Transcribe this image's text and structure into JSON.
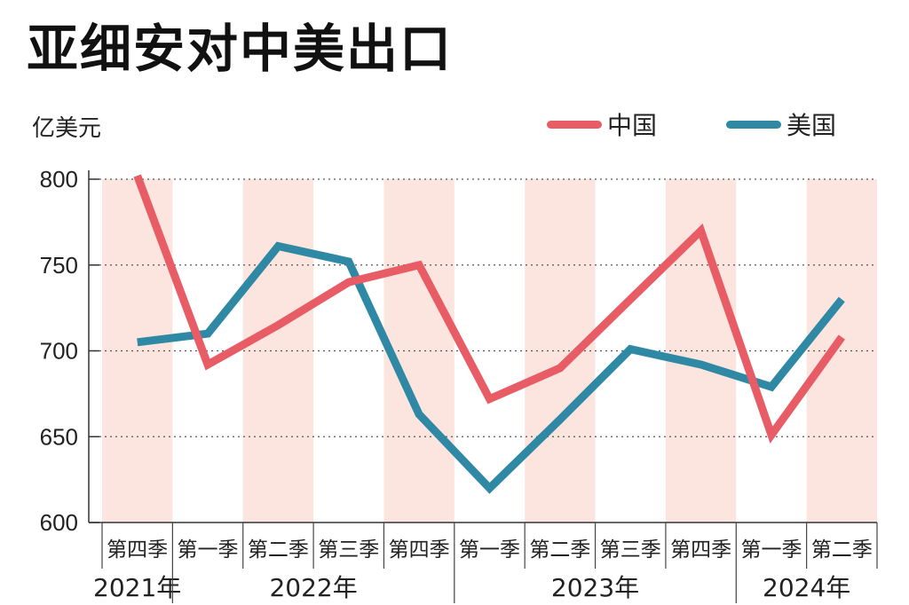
{
  "title": "亚细安对中美出口",
  "chart_data": {
    "type": "line",
    "ylabel": "亿美元",
    "ylim": [
      600,
      800
    ],
    "yticks": [
      800,
      750,
      700,
      650,
      600
    ],
    "categories": [
      "第四季",
      "第一季",
      "第二季",
      "第三季",
      "第四季",
      "第一季",
      "第二季",
      "第三季",
      "第四季",
      "第一季",
      "第二季"
    ],
    "year_groups": [
      {
        "label": "2021年",
        "span": 1
      },
      {
        "label": "2022年",
        "span": 4
      },
      {
        "label": "2023年",
        "span": 4
      },
      {
        "label": "2024年",
        "span": 2
      }
    ],
    "series": [
      {
        "name": "中国",
        "color": "#e85c66",
        "values": [
          802,
          692,
          715,
          740,
          750,
          672,
          690,
          730,
          770,
          651,
          708
        ]
      },
      {
        "name": "美国",
        "color": "#2f89a5",
        "values": [
          705,
          710,
          761,
          752,
          663,
          620,
          660,
          701,
          692,
          679,
          730
        ]
      }
    ],
    "grid": true,
    "legend_position": "top-right",
    "band_color": "#fbe5de"
  }
}
